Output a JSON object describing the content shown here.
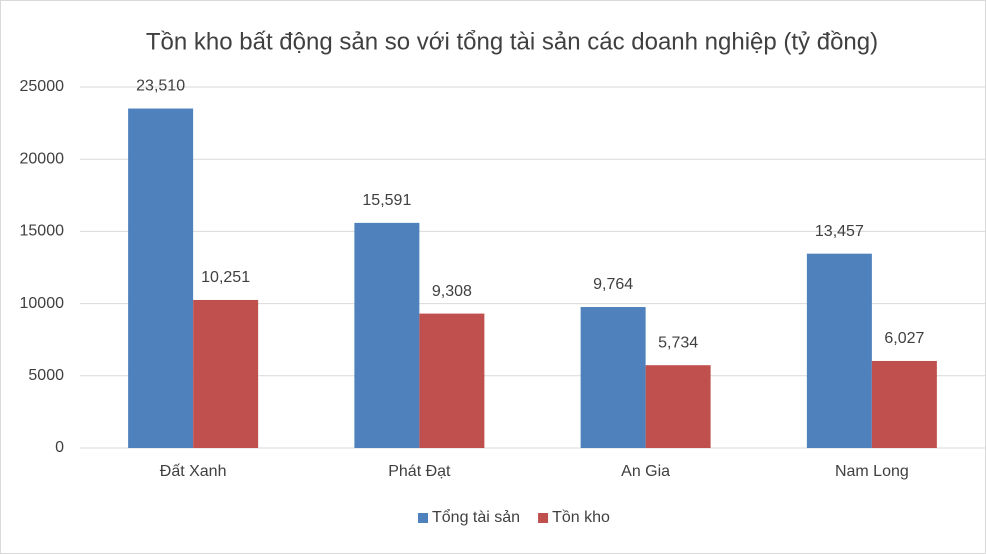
{
  "chart_data": {
    "type": "bar",
    "title": "Tồn kho bất động sản so với tổng tài sản các doanh nghiệp (tỷ đồng)",
    "categories": [
      "Đất Xanh",
      "Phát Đạt",
      "An Gia",
      "Nam Long"
    ],
    "series": [
      {
        "name": "Tổng tài sản",
        "color": "#4f81bd",
        "values": [
          23510,
          15591,
          9764,
          13457
        ],
        "value_labels": [
          "23,510",
          "15,591",
          "9,764",
          "13,457"
        ]
      },
      {
        "name": "Tồn kho",
        "color": "#c0504d",
        "values": [
          10251,
          9308,
          5734,
          6027
        ],
        "value_labels": [
          "10,251",
          "9,308",
          "5,734",
          "6,027"
        ]
      }
    ],
    "ylim": [
      0,
      25000
    ],
    "yticks": [
      0,
      5000,
      10000,
      15000,
      20000,
      25000
    ],
    "grid": true,
    "legend": "bottom"
  }
}
